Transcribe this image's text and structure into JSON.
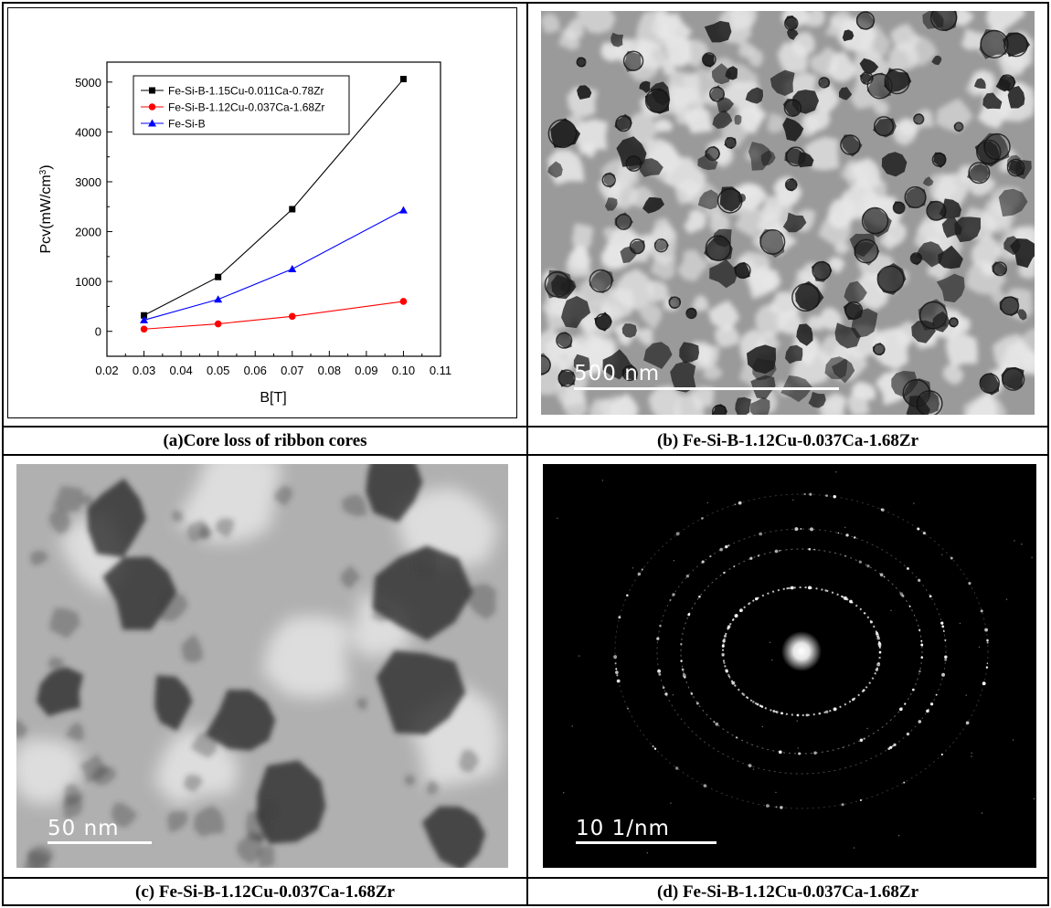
{
  "captions": {
    "a": "(a)Core loss of ribbon cores",
    "b": "(b) Fe-Si-B-1.12Cu-0.037Ca-1.68Zr",
    "c": "(c) Fe-Si-B-1.12Cu-0.037Ca-1.68Zr",
    "d": "(d) Fe-Si-B-1.12Cu-0.037Ca-1.68Zr"
  },
  "scalebars": {
    "b": "500 nm",
    "c": "50 nm",
    "d": "10 1/nm"
  },
  "colors": {
    "series1": "#000000",
    "series2": "#ff0000",
    "series3": "#0000ff"
  },
  "chart_data": {
    "type": "line",
    "xlabel": "B[T]",
    "ylabel_main": "Pcv(mW/cm",
    "ylabel_sup": "3",
    "ylabel_close": ")",
    "xlim": [
      0.02,
      0.11
    ],
    "ylim": [
      -500,
      5400
    ],
    "xticks": [
      "0.02",
      "0.03",
      "0.04",
      "0.05",
      "0.06",
      "0.07",
      "0.08",
      "0.09",
      "0.10",
      "0.11"
    ],
    "yticks": [
      "0",
      "1000",
      "2000",
      "3000",
      "4000",
      "5000"
    ],
    "legend_position": "top-left",
    "x": [
      0.03,
      0.05,
      0.07,
      0.1
    ],
    "series": [
      {
        "name": "Fe-Si-B-1.15Cu-0.011Ca-0.78Zr",
        "marker": "square",
        "color": "#000000",
        "values": [
          320,
          1090,
          2450,
          5060
        ]
      },
      {
        "name": "Fe-Si-B-1.12Cu-0.037Ca-1.68Zr",
        "marker": "circle",
        "color": "#ff0000",
        "values": [
          45,
          150,
          300,
          600
        ]
      },
      {
        "name": "Fe-Si-B",
        "marker": "triangle",
        "color": "#0000ff",
        "values": [
          225,
          640,
          1250,
          2430
        ]
      }
    ]
  }
}
